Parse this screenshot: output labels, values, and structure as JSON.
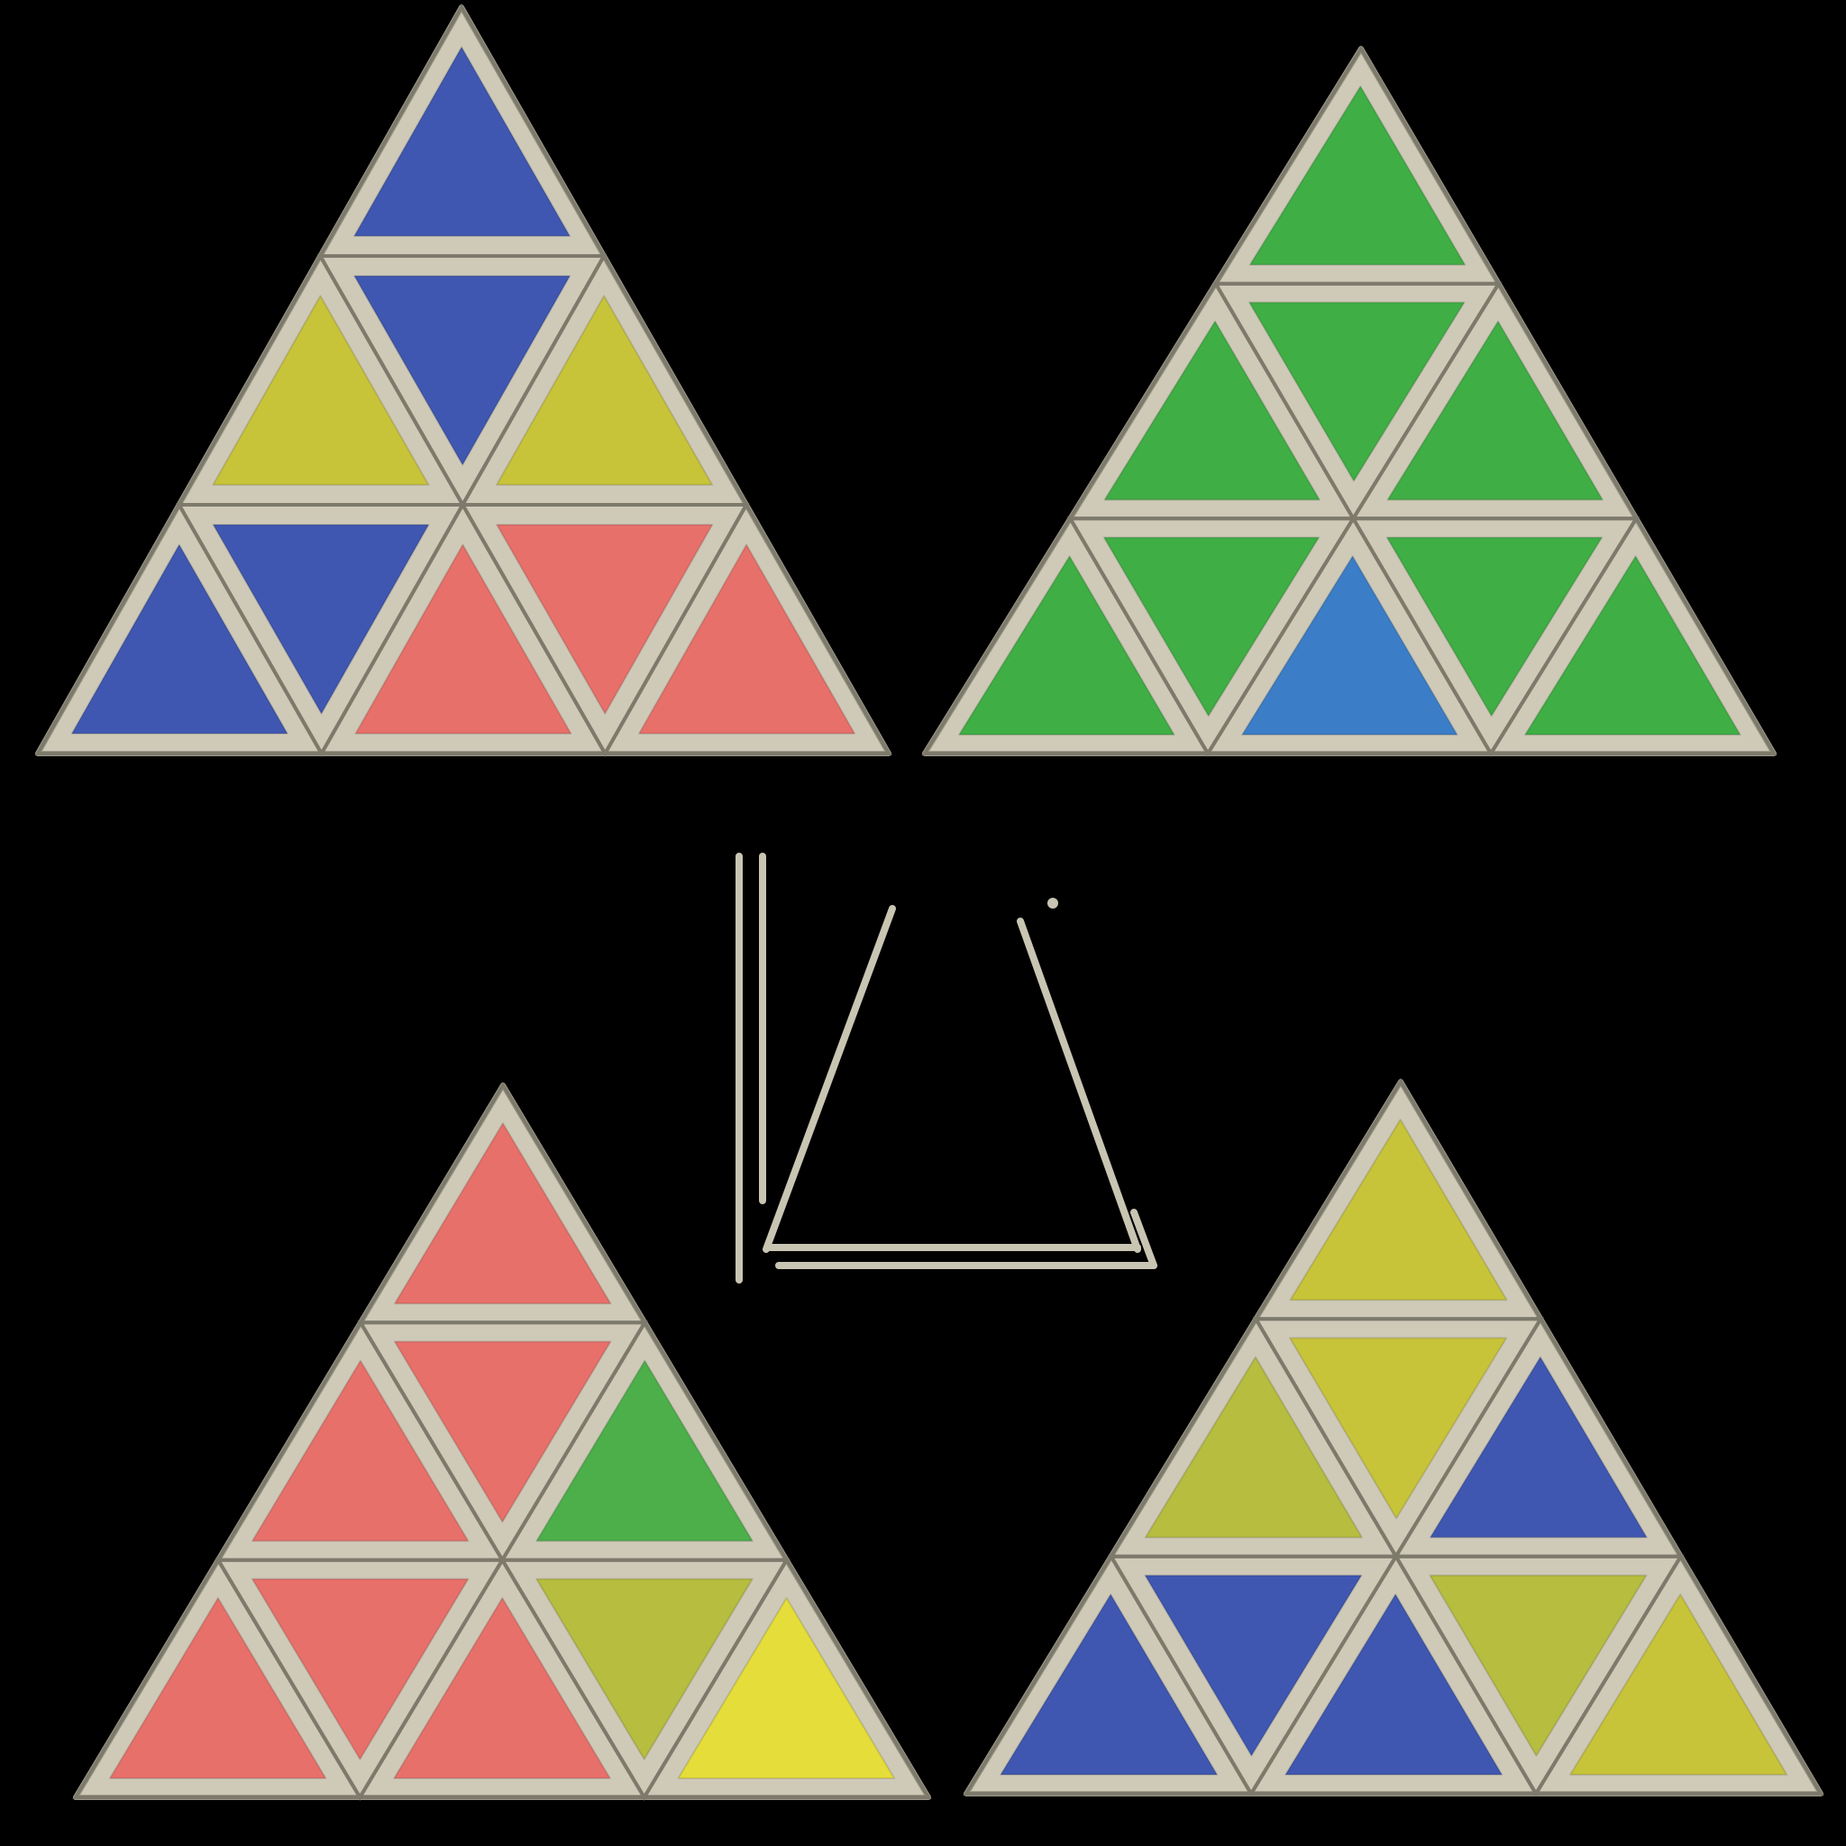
{
  "colors": {
    "background": "#000000",
    "frame": "#cfcab8",
    "frame_dark": "#9e9a8a",
    "seam": "#7d7a6c",
    "blue": "#3f57b0",
    "yellow": "#c8c43a",
    "red": "#e8706a",
    "green": "#4caf4a",
    "green_bright": "#3fae45",
    "blue_light": "#3b7dc6",
    "yellow_bright": "#e5de3a",
    "yellow_green": "#b7bd3e"
  },
  "faces": [
    {
      "name": "top-left-face",
      "stickers": {
        "t0": "blue",
        "m0": "yellow",
        "m1": "blue",
        "m2": "yellow",
        "b0": "blue",
        "b1": "blue",
        "b2": "red",
        "b3": "red",
        "b4": "red"
      }
    },
    {
      "name": "top-right-face",
      "stickers": {
        "t0": "green_bright",
        "m0": "green_bright",
        "m1": "green_bright",
        "m2": "green_bright",
        "b0": "green_bright",
        "b1": "green_bright",
        "b2": "blue_light",
        "b3": "green_bright",
        "b4": "green_bright"
      }
    },
    {
      "name": "bottom-left-face",
      "stickers": {
        "t0": "red",
        "m0": "red",
        "m1": "red",
        "m2": "green",
        "b0": "red",
        "b1": "red",
        "b2": "red",
        "b3": "yellow_green",
        "b4": "yellow_bright"
      }
    },
    {
      "name": "bottom-right-face",
      "stickers": {
        "t0": "yellow",
        "m0": "yellow_green",
        "m1": "yellow",
        "m2": "blue",
        "b0": "blue",
        "b1": "blue",
        "b2": "blue",
        "b3": "yellow_green",
        "b4": "yellow"
      }
    }
  ]
}
